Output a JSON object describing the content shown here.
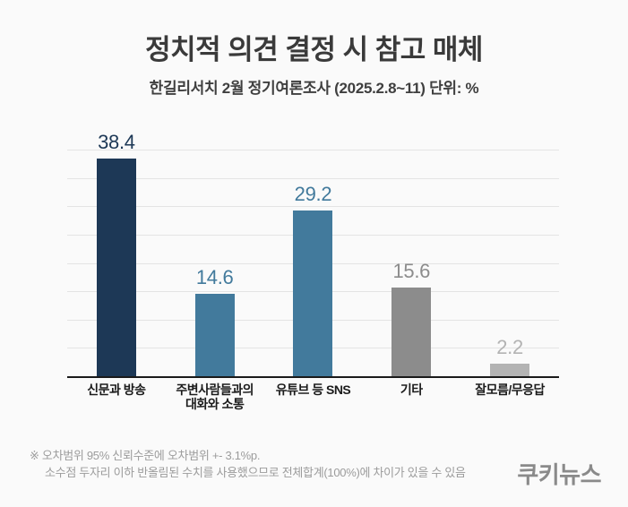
{
  "title": "정치적 의견 결정 시 참고 매체",
  "subtitle": "한길리서치 2월 정기여론조사 (2025.2.8~11) 단위: %",
  "chart_data": {
    "type": "bar",
    "title": "정치적 의견 결정 시 참고 매체",
    "xlabel": "",
    "ylabel": "",
    "unit": "%",
    "ylim": [
      0,
      40
    ],
    "grid_step": 5,
    "grid": true,
    "legend": false,
    "categories": [
      "신문과 방송",
      "주변사람들과의 대화와 소통",
      "유튜브 등 SNS",
      "기타",
      "잘모름/무응답"
    ],
    "values": [
      38.4,
      14.6,
      29.2,
      15.6,
      2.2
    ],
    "bars": [
      {
        "label": "신문과 방송",
        "label_lines": [
          "신문과 방송"
        ],
        "value": 38.4,
        "value_text": "38.4",
        "color": "#1d3856"
      },
      {
        "label": "주변사람들과의 대화와 소통",
        "label_lines": [
          "주변사람들과의",
          "대화와 소통"
        ],
        "value": 14.6,
        "value_text": "14.6",
        "color": "#427a9c"
      },
      {
        "label": "유튜브 등 SNS",
        "label_lines": [
          "유튜브 등 SNS"
        ],
        "value": 29.2,
        "value_text": "29.2",
        "color": "#427a9c"
      },
      {
        "label": "기타",
        "label_lines": [
          "기타"
        ],
        "value": 15.6,
        "value_text": "15.6",
        "color": "#8c8c8c"
      },
      {
        "label": "잘모름/무응답",
        "label_lines": [
          "잘모름/무응답"
        ],
        "value": 2.2,
        "value_text": "2.2",
        "color": "#b3b3b3"
      }
    ]
  },
  "footer": {
    "line1": "※ 오차범위 95% 신뢰수준에 오차범위 +- 3.1%p.",
    "line2": "소수점 두자리 이하 반올림된 수치를 사용했으므로 전체합계(100%)에 차이가 있을 수 있음"
  },
  "logo": "쿠키뉴스",
  "colors": {
    "background": "#fafafa",
    "title_text": "#3a3a3a",
    "axis_line": "#1a1a1a",
    "gridline": "#e4e4e4",
    "footnote_text": "#9c9c9c",
    "logo_text": "#8a8a8a",
    "navy": "#1d3856",
    "steel_blue": "#427a9c",
    "gray": "#8c8c8c",
    "light_gray": "#b3b3b3"
  }
}
